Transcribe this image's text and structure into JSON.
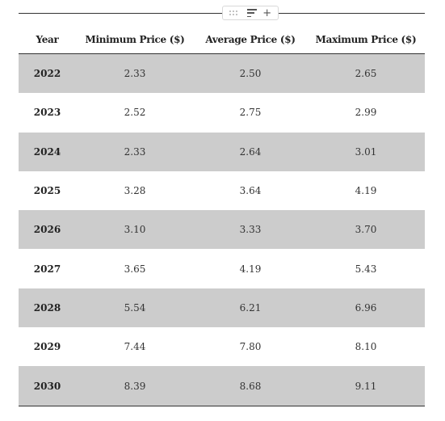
{
  "table": {
    "headers": [
      "Year",
      "Minimum Price ($)",
      "Average Price ($)",
      "Maximum Price ($)"
    ],
    "rows": [
      {
        "year": "2022",
        "min": "2.33",
        "avg": "2.50",
        "max": "2.65"
      },
      {
        "year": "2023",
        "min": "2.52",
        "avg": "2.75",
        "max": "2.99"
      },
      {
        "year": "2024",
        "min": "2.33",
        "avg": "2.64",
        "max": "3.01"
      },
      {
        "year": "2025",
        "min": "3.28",
        "avg": "3.64",
        "max": "4.19"
      },
      {
        "year": "2026",
        "min": "3.10",
        "avg": "3.33",
        "max": "3.70"
      },
      {
        "year": "2027",
        "min": "3.65",
        "avg": "4.19",
        "max": "5.43"
      },
      {
        "year": "2028",
        "min": "5.54",
        "avg": "6.21",
        "max": "6.96"
      },
      {
        "year": "2029",
        "min": "7.44",
        "avg": "7.80",
        "max": "8.10"
      },
      {
        "year": "2030",
        "min": "8.39",
        "avg": "8.68",
        "max": "9.11"
      }
    ]
  },
  "toolbar": {
    "icons": [
      "drag-handle-icon",
      "sort-icon",
      "plus-icon"
    ],
    "plus_glyph": "+"
  },
  "colors": {
    "shaded_row": "#cccccc",
    "rule": "#333333"
  }
}
